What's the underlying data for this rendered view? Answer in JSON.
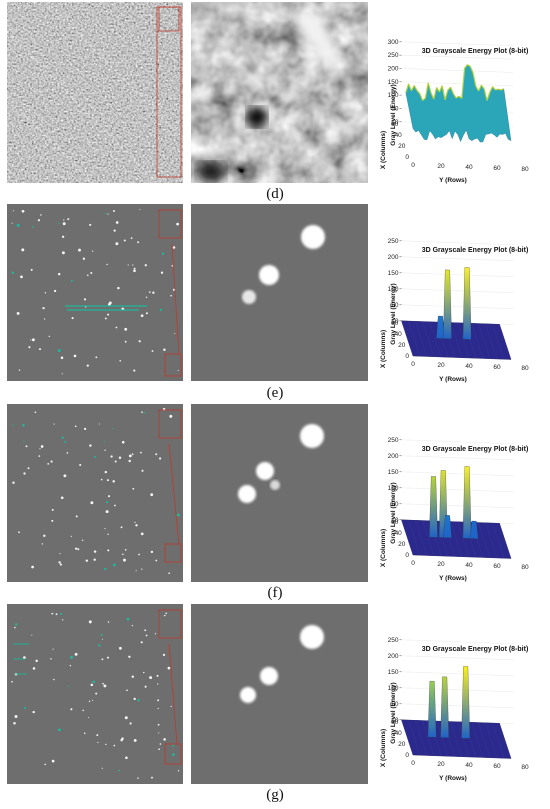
{
  "captions": [
    "(d)",
    "(e)",
    "(f)",
    "(g)"
  ],
  "plot": {
    "title": "3D Grayscale Energy Plot (8-bit)",
    "zlabel": "Gray Level (Energy)",
    "xlabel": "X (Columns)",
    "ylabel": "Y (Rows)"
  },
  "colors": {
    "background": "#ffffff",
    "panel_gray": "#6e6e6e",
    "marker_red": "#c0392b"
  },
  "chart_data": [
    {
      "type": "surface",
      "title": "3D Grayscale Energy Plot (8-bit)",
      "xlabel": "X (Columns)",
      "ylabel": "Y (Rows)",
      "zlabel": "Gray Level (Energy)",
      "zlim": [
        0,
        300
      ],
      "z_ticks": [
        0,
        50,
        100,
        150,
        200,
        250,
        300
      ],
      "x_ticks": [
        0,
        20,
        40,
        60
      ],
      "y_ticks": [
        0,
        20,
        40,
        60,
        80
      ],
      "peaks": []
    },
    {
      "type": "surface",
      "title": "3D Grayscale Energy Plot (8-bit)",
      "xlabel": "X (Columns)",
      "ylabel": "Y (Rows)",
      "zlabel": "Gray Level (Energy)",
      "zlim": [
        0,
        250
      ],
      "z_ticks": [
        0,
        50,
        100,
        150,
        200,
        250
      ],
      "x_ticks": [
        0,
        20,
        40,
        60
      ],
      "y_ticks": [
        0,
        20,
        40,
        60,
        80
      ],
      "peaks": [
        {
          "y": 24,
          "height": 70
        },
        {
          "y": 29,
          "height": 215
        },
        {
          "y": 43,
          "height": 225
        }
      ]
    },
    {
      "type": "surface",
      "title": "3D Grayscale Energy Plot (8-bit)",
      "xlabel": "X (Columns)",
      "ylabel": "Y (Rows)",
      "zlabel": "Gray Level (Energy)",
      "zlim": [
        0,
        250
      ],
      "z_ticks": [
        0,
        50,
        100,
        150,
        200,
        250
      ],
      "x_ticks": [
        0,
        20,
        40,
        60
      ],
      "y_ticks": [
        0,
        20,
        40,
        60,
        80
      ],
      "peaks": [
        {
          "y": 19,
          "height": 190
        },
        {
          "y": 26,
          "height": 210
        },
        {
          "y": 29,
          "height": 70
        },
        {
          "y": 43,
          "height": 225
        },
        {
          "y": 48,
          "height": 55
        }
      ]
    },
    {
      "type": "surface",
      "title": "3D Grayscale Energy Plot (8-bit)",
      "xlabel": "X (Columns)",
      "ylabel": "Y (Rows)",
      "zlabel": "Gray Level (Energy)",
      "zlim": [
        0,
        250
      ],
      "z_ticks": [
        0,
        50,
        100,
        150,
        200,
        250
      ],
      "x_ticks": [
        0,
        20,
        40,
        60
      ],
      "y_ticks": [
        0,
        20,
        40,
        60,
        80
      ],
      "peaks": [
        {
          "y": 18,
          "height": 175
        },
        {
          "y": 27,
          "height": 190
        },
        {
          "y": 42,
          "height": 225
        }
      ]
    }
  ]
}
